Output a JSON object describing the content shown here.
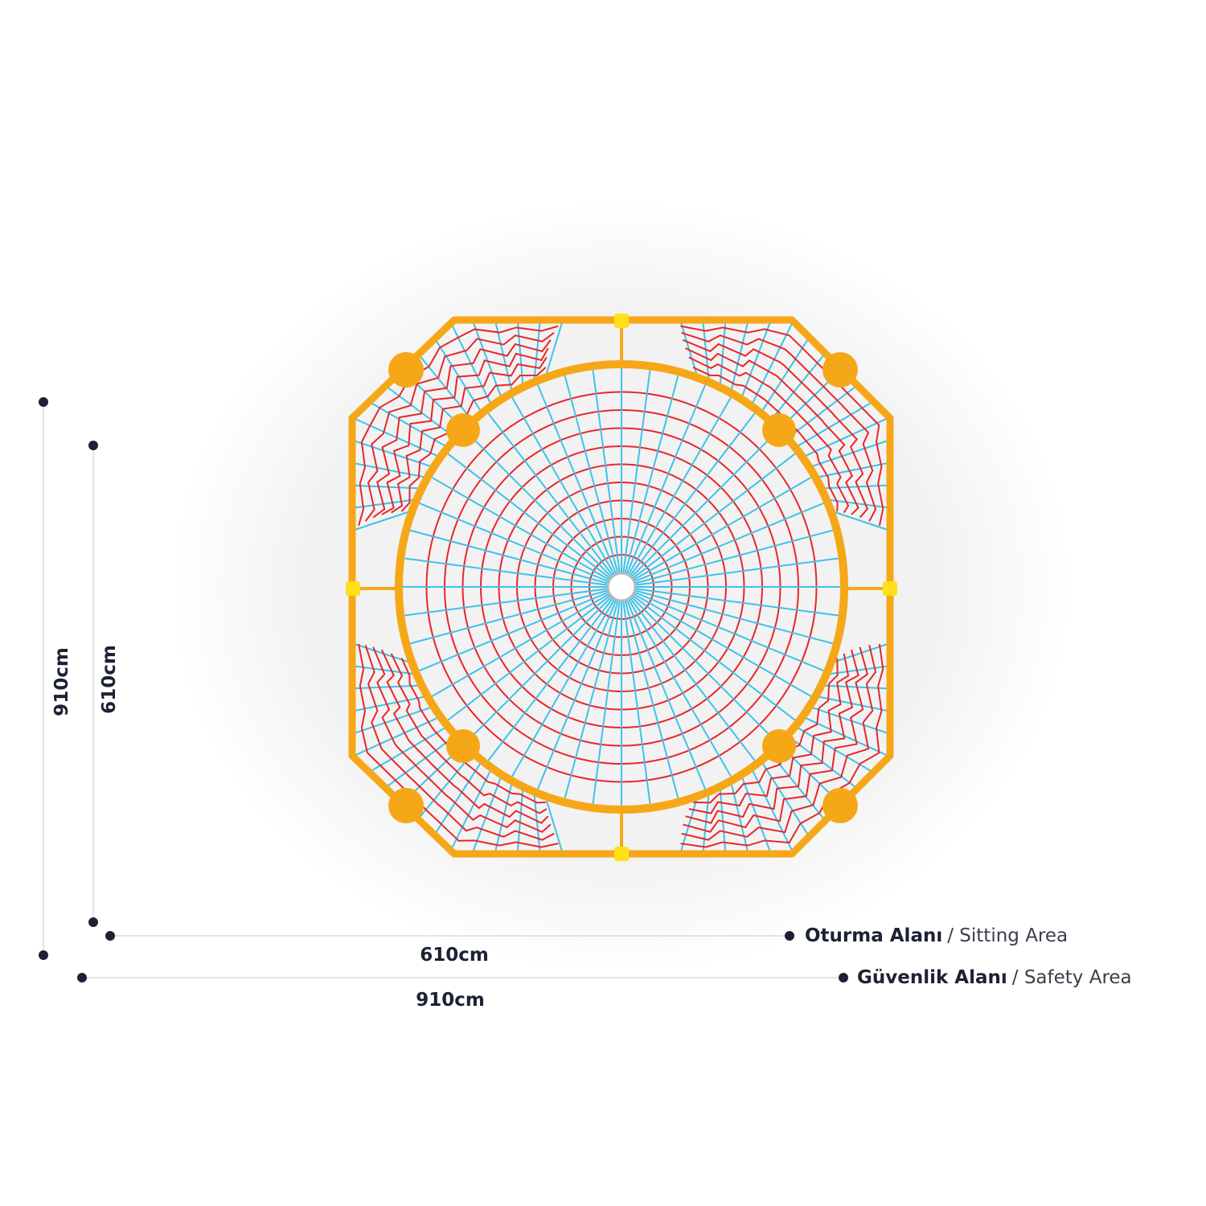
{
  "dimensions": {
    "vertical_outer": "910cm",
    "vertical_inner": "610cm",
    "horizontal_inner": "610cm",
    "horizontal_outer": "910cm"
  },
  "legend": [
    {
      "label": "Oturma Alanı",
      "sublabel": "/ Sitting Area"
    },
    {
      "label": "Güvenlik Alanı",
      "sublabel": "/ Safety Area"
    }
  ]
}
